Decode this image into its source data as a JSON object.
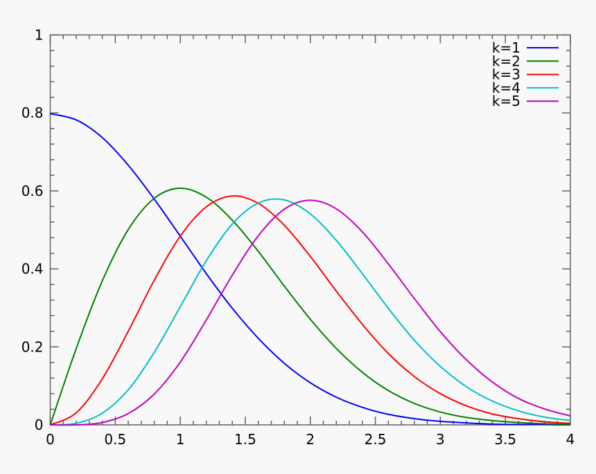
{
  "chart_data": {
    "type": "line",
    "title": "",
    "xlabel": "",
    "ylabel": "",
    "xlim": [
      0,
      4
    ],
    "ylim": [
      0,
      1
    ],
    "grid": false,
    "legend_placement": "top-right",
    "x_ticks": [
      "0",
      "0.5",
      "1",
      "1.5",
      "2",
      "2.5",
      "3",
      "3.5",
      "4"
    ],
    "y_ticks": [
      "0",
      "0.2",
      "0.4",
      "0.6",
      "0.8",
      "1"
    ],
    "x": [
      0,
      0.2,
      0.4,
      0.6,
      0.8,
      1.0,
      1.2,
      1.4,
      1.6,
      1.8,
      2.0,
      2.2,
      2.4,
      2.6,
      2.8,
      3.0,
      3.2,
      3.4,
      3.6,
      3.8,
      4.0
    ],
    "series": [
      {
        "name": "k=1",
        "color": "#0000ff",
        "values": [
          0.798,
          0.782,
          0.737,
          0.666,
          0.579,
          0.484,
          0.388,
          0.299,
          0.222,
          0.158,
          0.108,
          0.071,
          0.045,
          0.027,
          0.016,
          0.009,
          0.005,
          0.002,
          0.001,
          0.001,
          0.0
        ]
      },
      {
        "name": "k=2",
        "color": "#008000",
        "values": [
          0,
          0.196,
          0.369,
          0.501,
          0.581,
          0.607,
          0.584,
          0.525,
          0.445,
          0.356,
          0.271,
          0.196,
          0.135,
          0.088,
          0.055,
          0.033,
          0.019,
          0.011,
          0.006,
          0.003,
          0.001
        ]
      },
      {
        "name": "k=3",
        "color": "#ff0000",
        "values": [
          0,
          0.031,
          0.118,
          0.24,
          0.371,
          0.484,
          0.559,
          0.587,
          0.568,
          0.512,
          0.432,
          0.343,
          0.258,
          0.183,
          0.124,
          0.08,
          0.049,
          0.028,
          0.016,
          0.008,
          0.004
        ]
      },
      {
        "name": "k=4",
        "color": "#00c0c0",
        "values": [
          0,
          0.004,
          0.03,
          0.09,
          0.186,
          0.303,
          0.421,
          0.515,
          0.569,
          0.577,
          0.541,
          0.473,
          0.388,
          0.299,
          0.217,
          0.15,
          0.098,
          0.061,
          0.036,
          0.02,
          0.011
        ]
      },
      {
        "name": "k=5",
        "color": "#c000c0",
        "values": [
          0,
          0.0,
          0.006,
          0.029,
          0.079,
          0.161,
          0.269,
          0.384,
          0.485,
          0.553,
          0.576,
          0.554,
          0.495,
          0.413,
          0.324,
          0.239,
          0.167,
          0.11,
          0.068,
          0.041,
          0.023
        ]
      }
    ]
  }
}
